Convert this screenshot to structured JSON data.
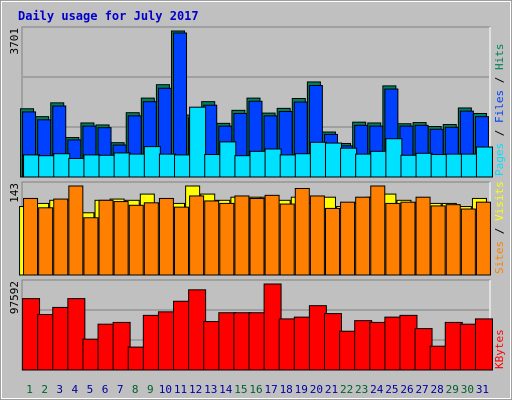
{
  "chart_data": {
    "type": "bar",
    "title": "Daily usage for July 2017",
    "categories": [
      "1",
      "2",
      "3",
      "4",
      "5",
      "6",
      "7",
      "8",
      "9",
      "10",
      "11",
      "12",
      "13",
      "14",
      "15",
      "16",
      "17",
      "18",
      "19",
      "20",
      "21",
      "22",
      "23",
      "24",
      "25",
      "26",
      "27",
      "28",
      "29",
      "30",
      "31"
    ],
    "weekend_days": [
      "1",
      "2",
      "8",
      "9",
      "15",
      "16",
      "22",
      "23",
      "29",
      "30"
    ],
    "panels": [
      {
        "id": "hits-files-pages",
        "ymax_label": "3701",
        "ylim": [
          0,
          3701
        ],
        "legend": [
          "Pages",
          "Files",
          "Hits"
        ],
        "series": [
          {
            "name": "Hits",
            "values": [
              1730,
              1530,
              1880,
              1000,
              1370,
              1320,
              870,
              1630,
              2000,
              2340,
              3701,
              1570,
              1910,
              1360,
              1690,
              2000,
              1620,
              1740,
              1990,
              2410,
              1140,
              850,
              1390,
              1370,
              2310,
              1350,
              1380,
              1280,
              1330,
              1750,
              1610
            ]
          },
          {
            "name": "Files",
            "values": [
              1650,
              1450,
              1800,
              940,
              1290,
              1250,
              810,
              1550,
              1910,
              2250,
              3650,
              1500,
              1820,
              1290,
              1610,
              1920,
              1550,
              1660,
              1900,
              2320,
              1080,
              790,
              1310,
              1290,
              2230,
              1290,
              1310,
              1210,
              1260,
              1670,
              1530
            ]
          },
          {
            "name": "Pages",
            "values": [
              560,
              540,
              590,
              470,
              560,
              550,
              610,
              580,
              770,
              580,
              560,
              1770,
              570,
              890,
              540,
              650,
              710,
              560,
              590,
              880,
              860,
              730,
              580,
              650,
              970,
              550,
              600,
              570,
              580,
              580,
              760
            ]
          }
        ]
      },
      {
        "id": "visits-sites",
        "ymax_label": "143",
        "ylim": [
          0,
          143
        ],
        "legend": [
          "Sites",
          "Visits"
        ],
        "series": [
          {
            "name": "Visits",
            "values": [
              110,
              115,
              120,
              120,
              100,
              120,
              122,
              120,
              130,
              115,
              115,
              143,
              130,
              120,
              125,
              125,
              125,
              120,
              125,
              115,
              125,
              110,
              115,
              125,
              130,
              120,
              115,
              115,
              115,
              110,
              123
            ]
          },
          {
            "name": "Sites",
            "values": [
              123,
              108,
              122,
              143,
              92,
              120,
              118,
              112,
              116,
              123,
              109,
              127,
              119,
              115,
              127,
              123,
              128,
              114,
              139,
              127,
              107,
              117,
              125,
              146,
              115,
              117,
              125,
              111,
              113,
              106,
              117
            ]
          }
        ]
      },
      {
        "id": "kbytes",
        "ymax_label": "97592",
        "ylim": [
          0,
          97592
        ],
        "legend": [
          "KBytes"
        ],
        "series": [
          {
            "name": "KBytes",
            "values": [
              81000,
              63000,
              71000,
              81000,
              35000,
              52000,
              54000,
              26000,
              62000,
              66000,
              78000,
              91000,
              55000,
              65000,
              65000,
              65000,
              100000,
              58000,
              60000,
              73000,
              64000,
              44000,
              56000,
              54000,
              60000,
              62000,
              47000,
              27000,
              54000,
              52000,
              58000
            ]
          }
        ]
      }
    ],
    "colors": {
      "background": "#c0c0c0",
      "panel": "#c0c0c0",
      "title": "#0000cc",
      "hits": "#00805c",
      "files": "#0040ff",
      "pages": "#00e0ff",
      "visits": "#ffff00",
      "sites": "#ff8000",
      "kbytes": "#ff0000",
      "weekday_label": "#0000a0",
      "weekend_label": "#006030"
    }
  }
}
